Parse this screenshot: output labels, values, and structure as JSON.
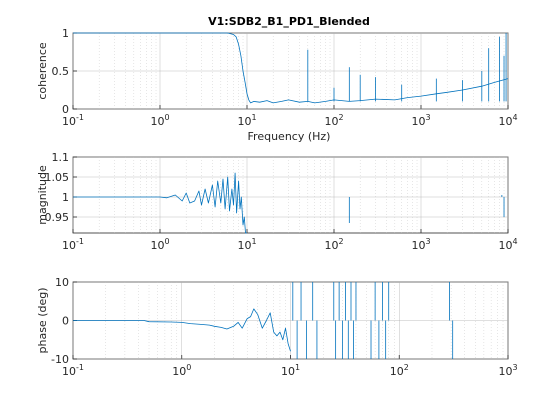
{
  "chart_data": [
    {
      "type": "line",
      "title": "V1:SDB2_B1_PD1_Blended",
      "xlabel": "Frequency (Hz)",
      "ylabel": "coherence",
      "xscale": "log",
      "xlim": [
        0.1,
        10000
      ],
      "ylim": [
        0,
        1
      ],
      "yticks": [
        0,
        0.5,
        1
      ],
      "ytick_labels": [
        "0",
        "0.5",
        "1"
      ],
      "xtick_labels": [
        {
          "base": "10",
          "exp": "-1"
        },
        {
          "base": "10",
          "exp": "0"
        },
        {
          "base": "10",
          "exp": "1"
        },
        {
          "base": "10",
          "exp": "2"
        },
        {
          "base": "10",
          "exp": "3"
        },
        {
          "base": "10",
          "exp": "4"
        }
      ],
      "grid": true,
      "color": "#0072bd",
      "series": [
        {
          "x": [
            0.1,
            0.5,
            1,
            2,
            3,
            4,
            5,
            6,
            7,
            7.5,
            8,
            8.5,
            9,
            9.5,
            10,
            10.5,
            11,
            12,
            14,
            17,
            20,
            25,
            30,
            40,
            50,
            60,
            80,
            100,
            150,
            200,
            300,
            500,
            700,
            1000,
            1500,
            2000,
            3000,
            5000,
            7000,
            10000
          ],
          "y": [
            1,
            1,
            1,
            1,
            1,
            1,
            1,
            1,
            0.98,
            0.95,
            0.85,
            0.7,
            0.5,
            0.35,
            0.2,
            0.12,
            0.08,
            0.1,
            0.09,
            0.11,
            0.08,
            0.1,
            0.12,
            0.09,
            0.1,
            0.08,
            0.1,
            0.12,
            0.1,
            0.11,
            0.13,
            0.12,
            0.15,
            0.17,
            0.2,
            0.22,
            0.25,
            0.3,
            0.35,
            0.4
          ]
        }
      ],
      "spikes": [
        {
          "x": 50,
          "y": 0.78
        },
        {
          "x": 100,
          "y": 0.28
        },
        {
          "x": 150,
          "y": 0.55
        },
        {
          "x": 200,
          "y": 0.45
        },
        {
          "x": 300,
          "y": 0.42
        },
        {
          "x": 600,
          "y": 0.32
        },
        {
          "x": 1500,
          "y": 0.4
        },
        {
          "x": 3000,
          "y": 0.38
        },
        {
          "x": 5000,
          "y": 0.5
        },
        {
          "x": 6000,
          "y": 0.8
        },
        {
          "x": 8000,
          "y": 0.95
        },
        {
          "x": 9000,
          "y": 0.7
        },
        {
          "x": 9500,
          "y": 1
        }
      ]
    },
    {
      "type": "line",
      "title": "",
      "xlabel": "",
      "ylabel": "magnitude",
      "xscale": "log",
      "xlim": [
        0.1,
        10000
      ],
      "ylim": [
        0.91,
        1.1
      ],
      "yticks": [
        0.95,
        1,
        1.05,
        1.1
      ],
      "ytick_labels": [
        "0.95",
        "1",
        "1.05",
        "1.1"
      ],
      "xtick_labels": [
        {
          "base": "10",
          "exp": "-1"
        },
        {
          "base": "10",
          "exp": "0"
        },
        {
          "base": "10",
          "exp": "1"
        },
        {
          "base": "10",
          "exp": "2"
        },
        {
          "base": "10",
          "exp": "3"
        },
        {
          "base": "10",
          "exp": "4"
        }
      ],
      "grid": true,
      "color": "#0072bd",
      "series": [
        {
          "x": [
            0.1,
            0.5,
            1,
            1.2,
            1.5,
            1.8,
            2,
            2.2,
            2.5,
            2.8,
            3,
            3.3,
            3.6,
            4,
            4.3,
            4.6,
            5,
            5.3,
            5.6,
            6,
            6.3,
            6.7,
            7,
            7.3,
            7.6,
            8,
            8.3,
            8.6,
            9,
            9.3,
            9.6,
            10
          ],
          "y": [
            1,
            1,
            1,
            0.998,
            1.005,
            0.99,
            1.01,
            0.985,
            0.99,
            1.015,
            0.98,
            1.02,
            0.985,
            1.03,
            0.975,
            1.04,
            0.985,
            1.045,
            0.97,
            1.05,
            0.965,
            1.02,
            0.98,
            1.06,
            0.96,
            1.04,
            0.97,
            1.0,
            0.93,
            0.95,
            0.91,
            0.91
          ]
        }
      ],
      "spikes": [
        {
          "x": 150,
          "y": 0.935
        },
        {
          "x": 8500,
          "y": 1.005
        },
        {
          "x": 9000,
          "y": 0.95
        }
      ]
    },
    {
      "type": "line",
      "title": "",
      "xlabel": "",
      "ylabel": "phase (deg)",
      "xscale": "log",
      "xlim": [
        0.1,
        1000
      ],
      "ylim": [
        -10,
        10
      ],
      "yticks": [
        -10,
        0,
        10
      ],
      "ytick_labels": [
        "-10",
        "0",
        "10"
      ],
      "xtick_labels": [
        {
          "base": "10",
          "exp": "-1"
        },
        {
          "base": "10",
          "exp": "0"
        },
        {
          "base": "10",
          "exp": "1"
        },
        {
          "base": "10",
          "exp": "2"
        },
        {
          "base": "10",
          "exp": "3"
        }
      ],
      "grid": true,
      "color": "#0072bd",
      "series": [
        {
          "x": [
            0.1,
            0.3,
            0.45,
            0.5,
            0.8,
            1,
            1.2,
            1.5,
            1.8,
            2,
            2.3,
            2.6,
            3,
            3.3,
            3.6,
            4,
            4.3,
            4.6,
            5,
            5.5,
            6,
            6.5,
            7,
            7.5,
            8,
            8.5,
            9,
            9.5,
            10
          ],
          "y": [
            0,
            0,
            0,
            -0.3,
            -0.4,
            -0.5,
            -0.8,
            -1,
            -1.2,
            -1.5,
            -1.8,
            -2.2,
            -1.5,
            -0.5,
            -2,
            0.5,
            1,
            3,
            1.5,
            -2,
            0,
            2,
            -3,
            -4,
            -3,
            -5,
            -2,
            -6,
            -8
          ]
        }
      ],
      "spikes": [
        {
          "x": 10.5,
          "y": 10
        },
        {
          "x": 11.5,
          "y": -10
        },
        {
          "x": 12.5,
          "y": 10
        },
        {
          "x": 14,
          "y": -10
        },
        {
          "x": 16,
          "y": 10
        },
        {
          "x": 17.5,
          "y": -10
        },
        {
          "x": 25,
          "y": 10
        },
        {
          "x": 26,
          "y": -10
        },
        {
          "x": 28,
          "y": 10
        },
        {
          "x": 30,
          "y": -10
        },
        {
          "x": 32,
          "y": 10
        },
        {
          "x": 34,
          "y": -10
        },
        {
          "x": 36,
          "y": 10
        },
        {
          "x": 38,
          "y": -10
        },
        {
          "x": 40,
          "y": 10
        },
        {
          "x": 55,
          "y": -10
        },
        {
          "x": 60,
          "y": 10
        },
        {
          "x": 65,
          "y": -10
        },
        {
          "x": 70,
          "y": 10
        },
        {
          "x": 75,
          "y": -10
        },
        {
          "x": 80,
          "y": 10
        },
        {
          "x": 290,
          "y": 10
        },
        {
          "x": 310,
          "y": -10
        }
      ]
    }
  ]
}
